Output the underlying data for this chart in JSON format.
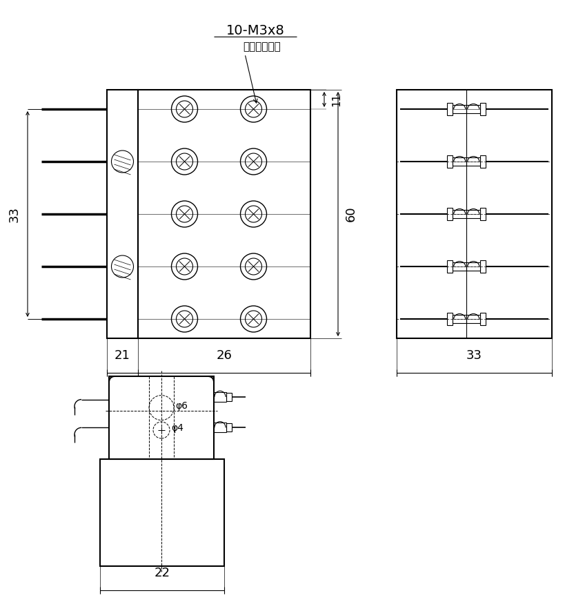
{
  "bg_color": "#ffffff",
  "line_color": "#000000",
  "annotation_10M3x8": "10-M3x8",
  "annotation_bind": "バインドネジ",
  "dim_33_left": "33",
  "dim_21": "21",
  "dim_26": "26",
  "dim_60": "60",
  "dim_11": "11",
  "dim_33_right": "33",
  "dim_22": "22",
  "dim_phi6": "φ6",
  "dim_phi4": "φ4"
}
